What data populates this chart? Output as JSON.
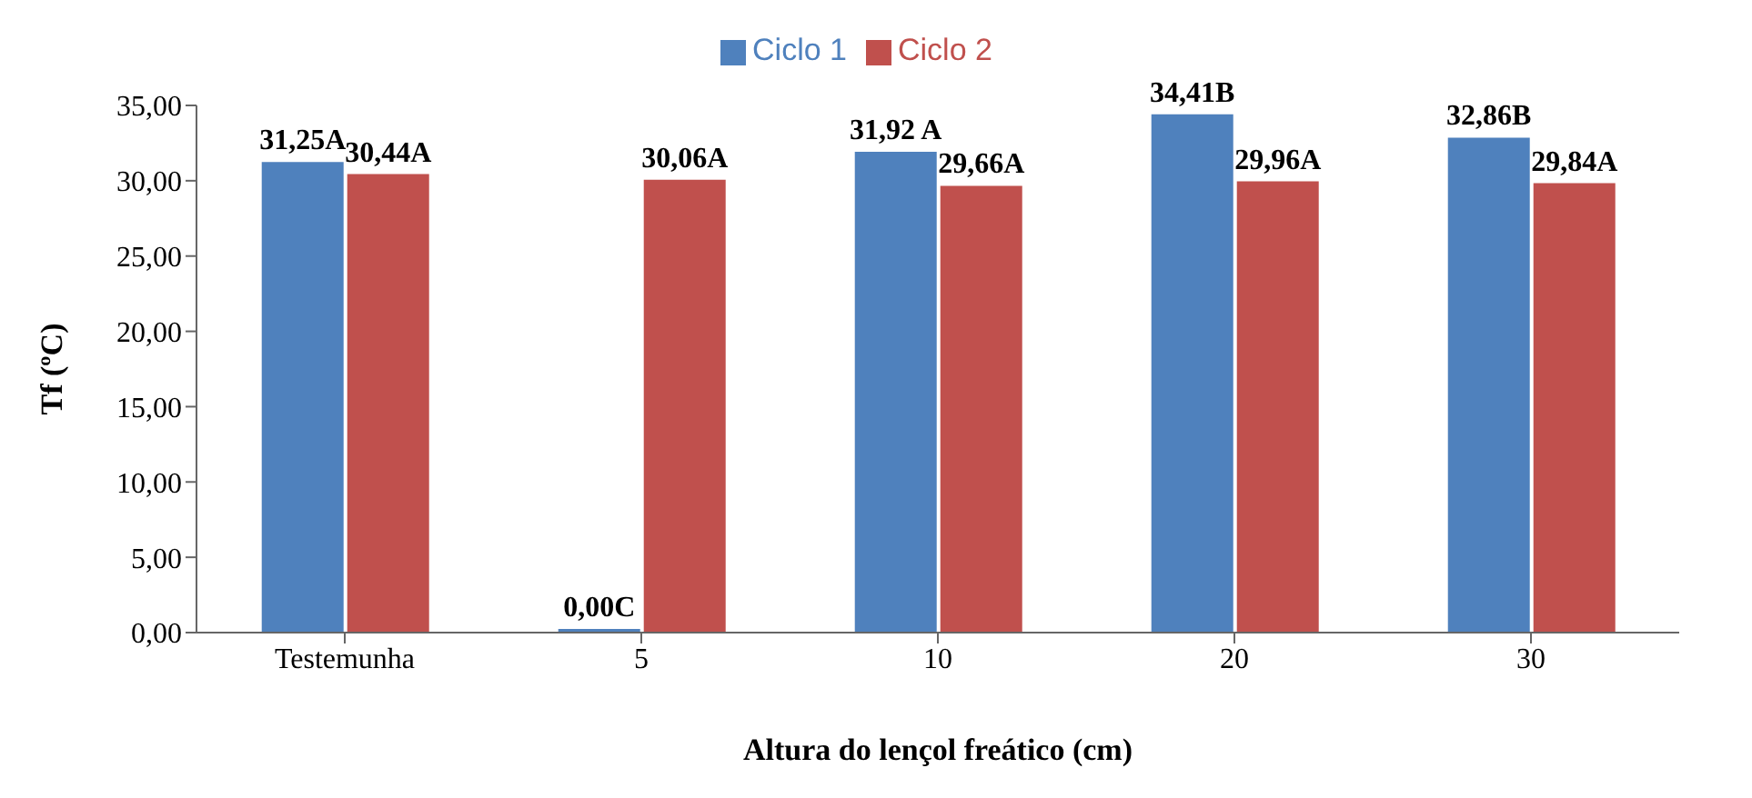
{
  "chart_data": {
    "type": "bar",
    "xlabel": "Altura do lençol freático (cm)",
    "ylabel": "Tf (ºC)",
    "categories": [
      "Testemunha",
      "5",
      "10",
      "20",
      "30"
    ],
    "series": [
      {
        "name": "Ciclo 1",
        "color": "#4f81bd",
        "values": [
          31.25,
          0,
          31.92,
          34.41,
          32.86
        ],
        "value_labels": [
          "31,25A",
          "0,00C",
          "31,92 A",
          "34,41B",
          "32,86B"
        ]
      },
      {
        "name": "Ciclo 2",
        "color": "#c0504d",
        "values": [
          30.44,
          30.06,
          29.66,
          29.96,
          29.84
        ],
        "value_labels": [
          "30,44A",
          "30,06A",
          "29,66A",
          "29,96A",
          "29,84A"
        ]
      }
    ],
    "ylim": [
      0,
      35
    ],
    "yticks": [
      {
        "value": 0,
        "label": "0,00"
      },
      {
        "value": 5,
        "label": "5,00"
      },
      {
        "value": 10,
        "label": "10,00"
      },
      {
        "value": 15,
        "label": "15,00"
      },
      {
        "value": 20,
        "label": "20,00"
      },
      {
        "value": 25,
        "label": "25,00"
      },
      {
        "value": 30,
        "label": "30,00"
      },
      {
        "value": 35,
        "label": "35,00"
      }
    ],
    "grid": false,
    "legend": "top"
  }
}
